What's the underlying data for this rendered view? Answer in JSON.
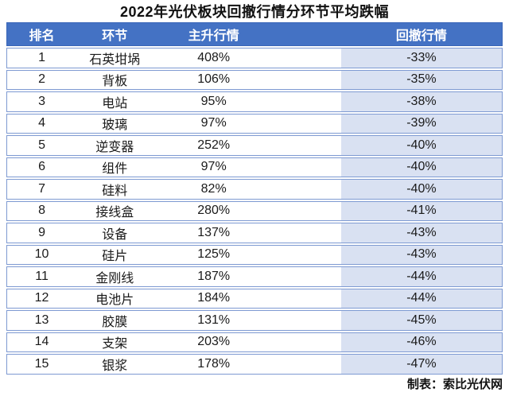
{
  "title": "2022年光伏板块回撤行情分环节平均跌幅",
  "credit": "制表：索比光伏网",
  "colors": {
    "header_bg": "#4472C4",
    "header_text": "#FFFFFF",
    "row_border": "#7E9AD2",
    "drawdown_column_bg": "#D9E1F2",
    "body_text": "#1A1A1A"
  },
  "table": {
    "headers": [
      "排名",
      "环节",
      "主升行情",
      "回撤行情"
    ],
    "rows": [
      {
        "rank": "1",
        "segment": "石英坩埚",
        "main_rally": "408%",
        "drawdown": "-33%"
      },
      {
        "rank": "2",
        "segment": "背板",
        "main_rally": "106%",
        "drawdown": "-35%"
      },
      {
        "rank": "3",
        "segment": "电站",
        "main_rally": "95%",
        "drawdown": "-38%"
      },
      {
        "rank": "4",
        "segment": "玻璃",
        "main_rally": "97%",
        "drawdown": "-39%"
      },
      {
        "rank": "5",
        "segment": "逆变器",
        "main_rally": "252%",
        "drawdown": "-40%"
      },
      {
        "rank": "6",
        "segment": "组件",
        "main_rally": "97%",
        "drawdown": "-40%"
      },
      {
        "rank": "7",
        "segment": "硅料",
        "main_rally": "82%",
        "drawdown": "-40%"
      },
      {
        "rank": "8",
        "segment": "接线盒",
        "main_rally": "280%",
        "drawdown": "-41%"
      },
      {
        "rank": "9",
        "segment": "设备",
        "main_rally": "137%",
        "drawdown": "-43%"
      },
      {
        "rank": "10",
        "segment": "硅片",
        "main_rally": "125%",
        "drawdown": "-43%"
      },
      {
        "rank": "11",
        "segment": "金刚线",
        "main_rally": "187%",
        "drawdown": "-44%"
      },
      {
        "rank": "12",
        "segment": "电池片",
        "main_rally": "184%",
        "drawdown": "-44%"
      },
      {
        "rank": "13",
        "segment": "胶膜",
        "main_rally": "131%",
        "drawdown": "-45%"
      },
      {
        "rank": "14",
        "segment": "支架",
        "main_rally": "203%",
        "drawdown": "-46%"
      },
      {
        "rank": "15",
        "segment": "银浆",
        "main_rally": "178%",
        "drawdown": "-47%"
      }
    ]
  },
  "chart_data": {
    "type": "table",
    "title": "2022年光伏板块回撤行情分环节平均跌幅",
    "columns": [
      "排名",
      "环节",
      "主升行情(%)",
      "回撤行情(%)"
    ],
    "ranks": [
      1,
      2,
      3,
      4,
      5,
      6,
      7,
      8,
      9,
      10,
      11,
      12,
      13,
      14,
      15
    ],
    "segments": [
      "石英坩埚",
      "背板",
      "电站",
      "玻璃",
      "逆变器",
      "组件",
      "硅料",
      "接线盒",
      "设备",
      "硅片",
      "金刚线",
      "电池片",
      "胶膜",
      "支架",
      "银浆"
    ],
    "main_rally_pct": [
      408,
      106,
      95,
      97,
      252,
      97,
      82,
      280,
      137,
      125,
      187,
      184,
      131,
      203,
      178
    ],
    "drawdown_pct": [
      -33,
      -35,
      -38,
      -39,
      -40,
      -40,
      -40,
      -41,
      -43,
      -43,
      -44,
      -44,
      -45,
      -46,
      -47
    ],
    "credit": "制表：索比光伏网"
  }
}
